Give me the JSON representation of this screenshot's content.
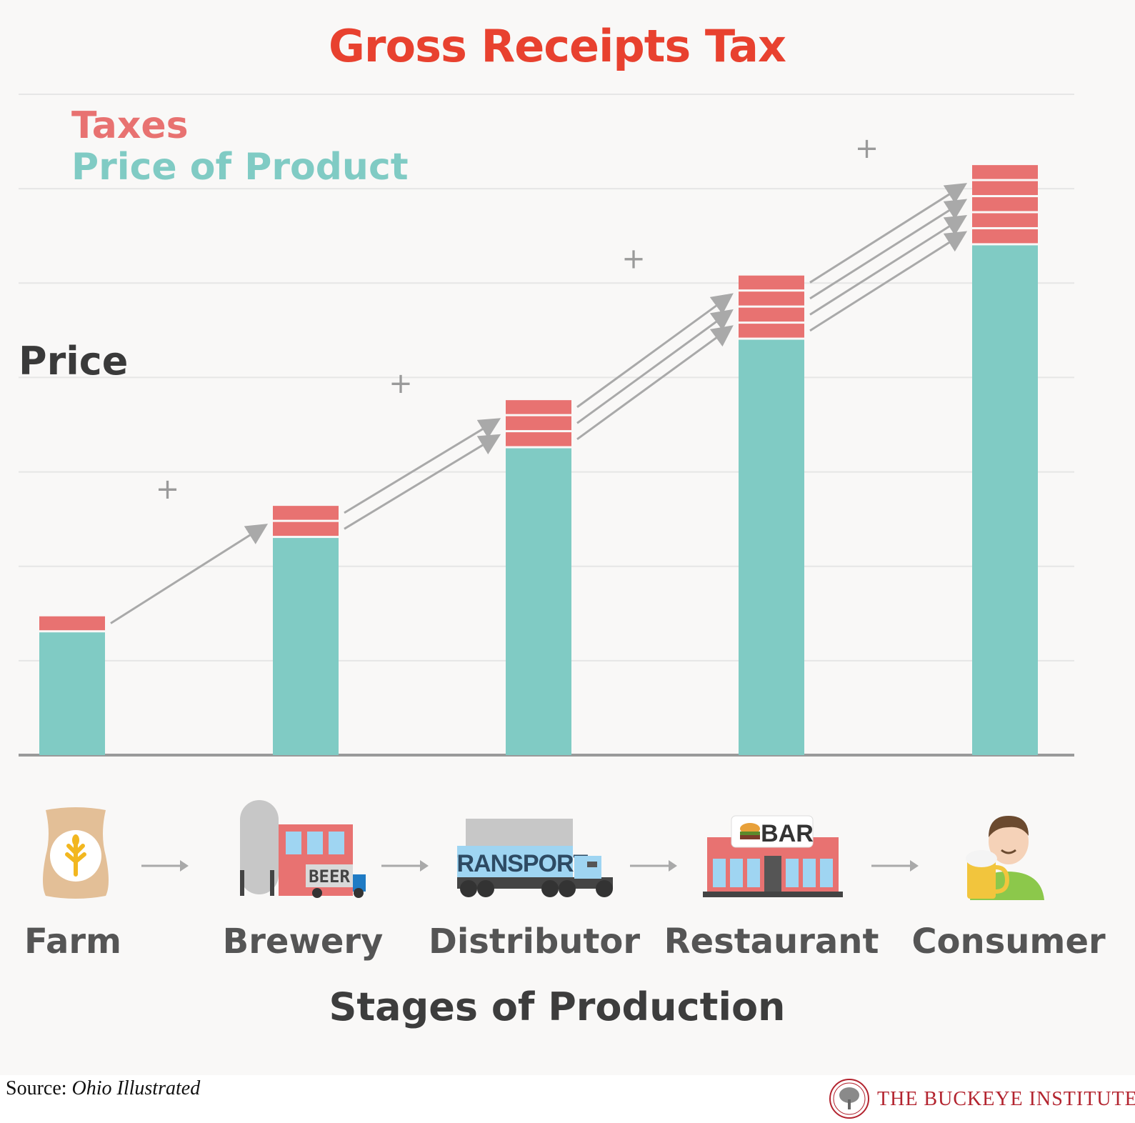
{
  "title": "Gross Receipts Tax",
  "legend": {
    "taxes_label": "Taxes",
    "price_label": "Price of Product"
  },
  "colors": {
    "title": "#e8412f",
    "taxes": "#e87271",
    "price": "#80cbc4",
    "arrow": "#a9a9a9",
    "grid": "#e6e6e6",
    "axis": "#9a9a9a"
  },
  "chart_data": {
    "type": "bar",
    "stacked": true,
    "title": "Gross Receipts Tax",
    "xlabel": "Stages of Production",
    "ylabel": "Price",
    "y_ticks_shown": false,
    "grid": true,
    "legend_position": "top-left",
    "ylim": [
      0,
      7
    ],
    "categories": [
      "Farm",
      "Brewery",
      "Distributor",
      "Restaurant",
      "Consumer"
    ],
    "series": [
      {
        "name": "Price of Product",
        "values": [
          1.3,
          2.3,
          3.25,
          4.4,
          5.4
        ]
      },
      {
        "name": "Taxes",
        "tax_blocks": [
          1,
          2,
          3,
          4,
          5
        ],
        "block_value": 0.17
      }
    ],
    "annotations": [
      "+",
      "+",
      "+",
      "+"
    ]
  },
  "stages": [
    {
      "label": "Farm",
      "icon": "grain-sack-icon"
    },
    {
      "label": "Brewery",
      "icon": "brewery-icon",
      "sign": "BEER"
    },
    {
      "label": "Distributor",
      "icon": "transport-truck-icon",
      "sign": "TRANSPORT"
    },
    {
      "label": "Restaurant",
      "icon": "bar-restaurant-icon",
      "sign": "BAR"
    },
    {
      "label": "Consumer",
      "icon": "consumer-with-beer-icon"
    }
  ],
  "source": {
    "prefix": "Source:",
    "name": "Ohio Illustrated"
  },
  "organization": {
    "name": "THE BUCKEYE INSTITUTE",
    "logo": "buckeye-tree-seal-icon"
  }
}
